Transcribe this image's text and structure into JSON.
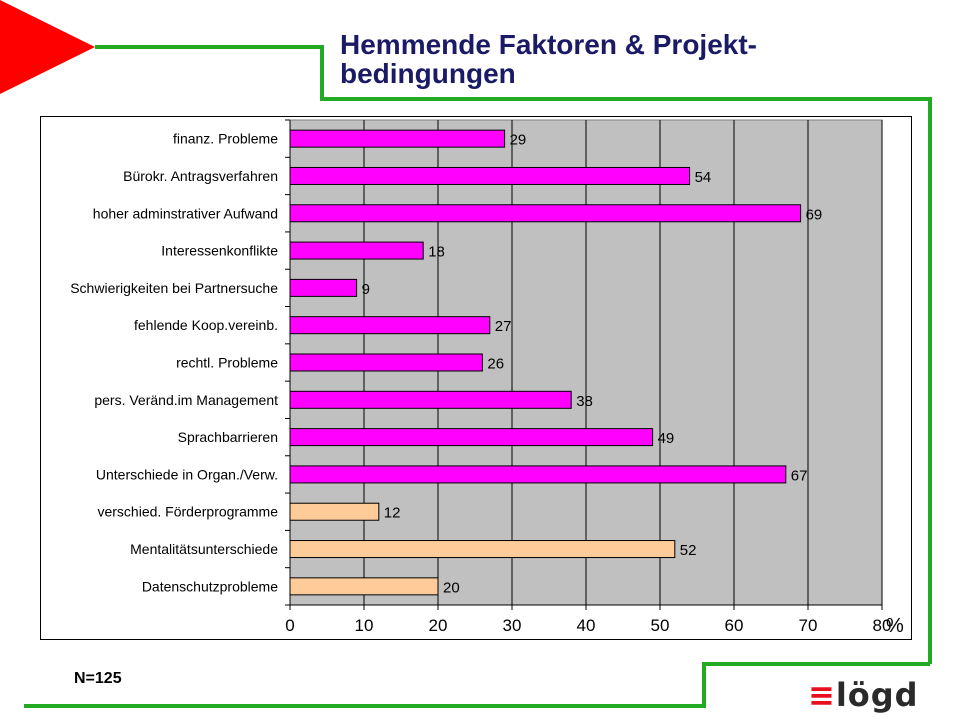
{
  "slide": {
    "title_line1": "Hemmende Faktoren & Projekt-",
    "title_line2": "bedingungen",
    "footnote": "N=125",
    "logo_text": "lögd",
    "colors": {
      "accent_red": "#ff0000",
      "line_green": "#22aa22",
      "title_navy": "#1a1a66",
      "logo_red": "#e8101e"
    }
  },
  "chart_data": {
    "type": "bar",
    "orientation": "horizontal",
    "categories": [
      "finanz. Probleme",
      "Bürokr. Antragsverfahren",
      "hoher adminstrativer Aufwand",
      "Interessenkonflikte",
      "Schwierigkeiten bei Partnersuche",
      "fehlende Koop.vereinb.",
      "rechtl. Probleme",
      "pers. Veränd.im Management",
      "Sprachbarrieren",
      "Unterschiede in Organ./Verw.",
      "verschied. Förderprogramme",
      "Mentalitätsunterschiede",
      "Datenschutzprobleme"
    ],
    "values": [
      29,
      54,
      69,
      18,
      9,
      27,
      26,
      38,
      49,
      67,
      12,
      52,
      20
    ],
    "bar_colors": [
      "#ff00ff",
      "#ff00ff",
      "#ff00ff",
      "#ff00ff",
      "#ff00ff",
      "#ff00ff",
      "#ff00ff",
      "#ff00ff",
      "#ff00ff",
      "#ff00ff",
      "#ffcc99",
      "#ffcc99",
      "#ffcc99"
    ],
    "x_ticks": [
      "0",
      "10",
      "20",
      "30",
      "40",
      "50",
      "60",
      "70",
      "80"
    ],
    "xlim": [
      0,
      80
    ],
    "x_unit": "%",
    "grid": true,
    "plot_background": "#c0c0c0",
    "title": "",
    "xlabel": "",
    "ylabel": ""
  }
}
